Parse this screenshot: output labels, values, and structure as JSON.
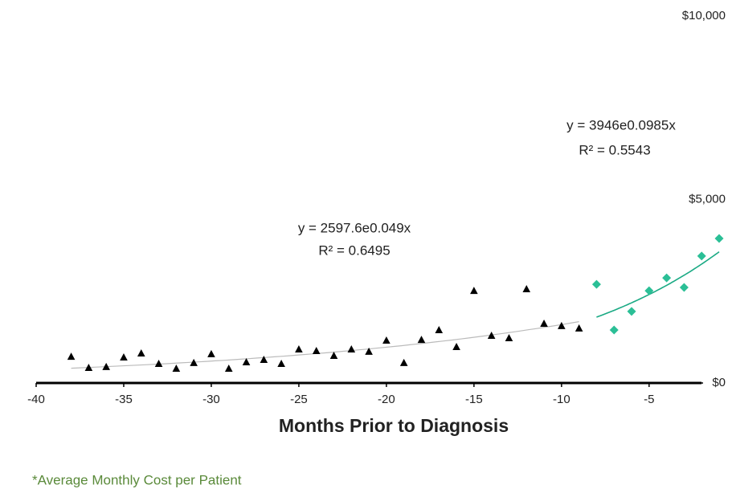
{
  "chart_data": {
    "type": "scatter",
    "x_label": "Months Prior to Diagnosis",
    "footnote": "*Average Monthly Cost per Patient",
    "xlim": [
      -40,
      -1
    ],
    "xticks": [
      -40,
      -35,
      -30,
      -25,
      -20,
      -15,
      -10,
      -5
    ],
    "ylim": [
      0,
      10000
    ],
    "yticks": [
      {
        "value": 0,
        "label": "$0"
      },
      {
        "value": 5000,
        "label": "$5,000"
      },
      {
        "value": 10000,
        "label": "$10,000"
      }
    ],
    "grid": false,
    "series": [
      {
        "color": "#000000",
        "marker": "triangle",
        "x": [
          -38,
          -37,
          -36,
          -35,
          -34,
          -33,
          -32,
          -31,
          -30,
          -29,
          -28,
          -27,
          -26,
          -25,
          -24,
          -23,
          -22,
          -21,
          -20,
          -19,
          -18,
          -17,
          -16,
          -15,
          -14,
          -13,
          -12,
          -11,
          -10,
          -9
        ],
        "values": [
          720,
          415,
          440,
          700,
          810,
          525,
          395,
          550,
          790,
          395,
          570,
          635,
          525,
          920,
          875,
          745,
          920,
          855,
          1160,
          550,
          1180,
          1445,
          985,
          2515,
          1290,
          1225,
          2560,
          1620,
          1555,
          1490
        ]
      },
      {
        "color": "#2bbf96",
        "marker": "diamond",
        "x": [
          -8,
          -7,
          -6,
          -5,
          -4,
          -3,
          -2,
          -1
        ],
        "values": [
          2690,
          1445,
          1950,
          2515,
          2865,
          2605,
          3460,
          3940
        ]
      }
    ],
    "trendlines": [
      {
        "equation": "y = 2597.6e0.049x",
        "r2": "R² = 0.6495",
        "a": 2597.6,
        "b": 0.049,
        "x_range": [
          -38,
          -9
        ],
        "color": "#bbbbbb"
      },
      {
        "equation": "y = 3946e0.0985x",
        "r2": "R² = 0.5543",
        "a": 3946,
        "b": 0.0985,
        "x_range": [
          -8,
          -1
        ],
        "color": "#1aaa84"
      }
    ]
  }
}
